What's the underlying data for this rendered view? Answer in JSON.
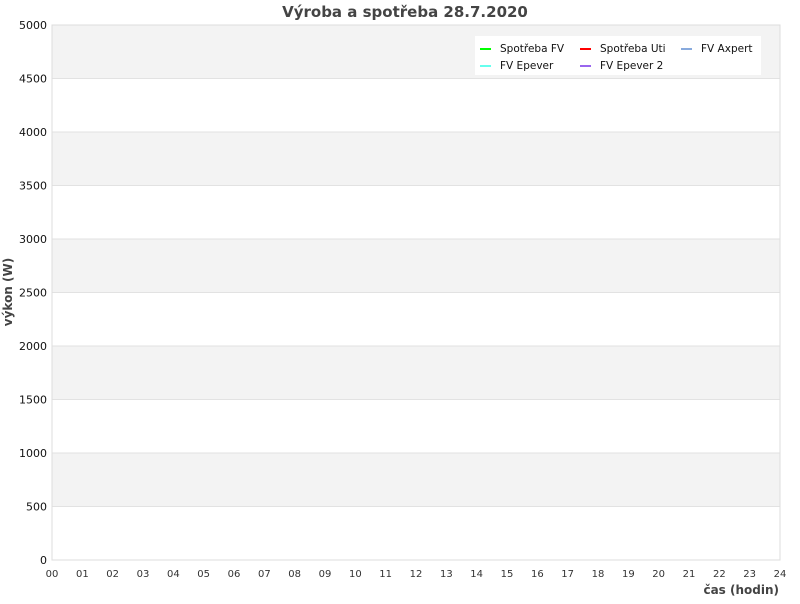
{
  "chart_data": {
    "type": "line",
    "title": "Výroba a spotřeba 28.7.2020",
    "xlabel": "čas (hodin)",
    "ylabel": "výkon (W)",
    "xlim": [
      0,
      24
    ],
    "ylim": [
      0,
      5000
    ],
    "x_ticks": [
      "00",
      "01",
      "02",
      "03",
      "04",
      "05",
      "06",
      "07",
      "08",
      "09",
      "10",
      "11",
      "12",
      "13",
      "14",
      "15",
      "16",
      "17",
      "18",
      "19",
      "20",
      "21",
      "22",
      "23",
      "24"
    ],
    "y_ticks": [
      0,
      500,
      1000,
      1500,
      2000,
      2500,
      3000,
      3500,
      4000,
      4500,
      5000
    ],
    "grid": true,
    "legend_position": "top-right",
    "series": [
      {
        "name": "Spotřeba FV",
        "color": "#00ff00",
        "values": []
      },
      {
        "name": "Spotřeba Uti",
        "color": "#ff0000",
        "values": []
      },
      {
        "name": "FV Axpert",
        "color": "#88aadd",
        "values": []
      },
      {
        "name": "FV Epever",
        "color": "#66ffee",
        "values": []
      },
      {
        "name": "FV Epever 2",
        "color": "#9966ee",
        "values": []
      }
    ],
    "band_colors": [
      "#ffffff",
      "#f3f3f3"
    ]
  }
}
